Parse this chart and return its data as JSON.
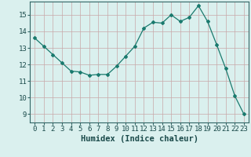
{
  "x": [
    0,
    1,
    2,
    3,
    4,
    5,
    6,
    7,
    8,
    9,
    10,
    11,
    12,
    13,
    14,
    15,
    16,
    17,
    18,
    19,
    20,
    21,
    22,
    23
  ],
  "y": [
    13.6,
    13.1,
    12.6,
    12.1,
    11.6,
    11.55,
    11.35,
    11.4,
    11.4,
    11.9,
    12.5,
    13.1,
    14.2,
    14.55,
    14.5,
    15.0,
    14.6,
    14.85,
    15.55,
    14.6,
    13.2,
    11.75,
    10.1,
    9.0
  ],
  "line_color": "#1a7a6e",
  "marker": "D",
  "marker_size": 2,
  "bg_color": "#daf0ee",
  "grid_color": "#c8a8a8",
  "xlabel": "Humidex (Indice chaleur)",
  "xlim": [
    -0.5,
    23.5
  ],
  "ylim": [
    8.5,
    15.8
  ],
  "yticks": [
    9,
    10,
    11,
    12,
    13,
    14,
    15
  ],
  "xticks": [
    0,
    1,
    2,
    3,
    4,
    5,
    6,
    7,
    8,
    9,
    10,
    11,
    12,
    13,
    14,
    15,
    16,
    17,
    18,
    19,
    20,
    21,
    22,
    23
  ],
  "xlabel_fontsize": 7.5,
  "tick_fontsize": 6.5,
  "spine_color": "#336666",
  "axis_border_color": "#336666"
}
